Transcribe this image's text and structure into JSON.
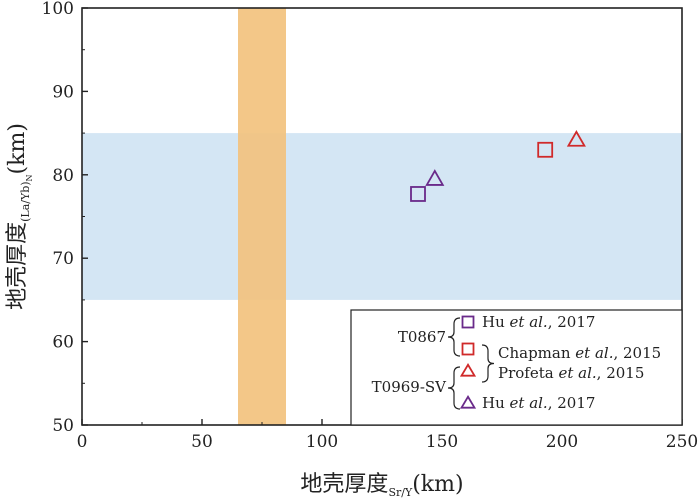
{
  "chart_data": {
    "type": "scatter",
    "xlabel": {
      "main": "地壳厚度",
      "sub": "Sr/Y",
      "unit": "(km)"
    },
    "ylabel": {
      "main": "地壳厚度",
      "sub": "(La/Yb)",
      "sub2": "N",
      "unit": "(km)"
    },
    "xlim": [
      0,
      250
    ],
    "ylim": [
      50,
      100
    ],
    "xticks": [
      0,
      50,
      100,
      150,
      200,
      250
    ],
    "yticks": [
      50,
      60,
      70,
      80,
      90,
      100
    ],
    "grid": false,
    "legend_position": "bottom-right",
    "bands": [
      {
        "orientation": "vertical",
        "from": 65,
        "to": 85,
        "color": "#f2c27e"
      },
      {
        "orientation": "horizontal",
        "from": 65,
        "to": 85,
        "color": "#d4e6f4"
      }
    ],
    "series": [
      {
        "marker": "square",
        "color": "#6a2a8a",
        "points": [
          {
            "x": 140,
            "y": 77.7
          }
        ]
      },
      {
        "marker": "square",
        "color": "#d02a2a",
        "points": [
          {
            "x": 193,
            "y": 83
          }
        ]
      },
      {
        "marker": "triangle",
        "color": "#d02a2a",
        "points": [
          {
            "x": 206,
            "y": 84.2
          }
        ]
      },
      {
        "marker": "triangle",
        "color": "#6a2a8a",
        "points": [
          {
            "x": 147,
            "y": 79.5
          }
        ]
      }
    ],
    "legend": {
      "groups": [
        {
          "label": "T0867"
        },
        {
          "label": "T0969-SV"
        }
      ],
      "entries": [
        {
          "marker": "square",
          "color": "#6a2a8a",
          "author": "Hu ",
          "etal": "et al.",
          "year": ", 2017"
        },
        {
          "marker": "square",
          "color": "#d02a2a",
          "author": "Chapman ",
          "etal": "et al.",
          "year": ", 2015"
        },
        {
          "marker": "triangle",
          "color": "#d02a2a",
          "author": "Profeta ",
          "etal": "et al.",
          "year": ", 2015"
        },
        {
          "marker": "triangle",
          "color": "#6a2a8a",
          "author": "Hu ",
          "etal": "et al.",
          "year": ", 2017"
        }
      ]
    }
  }
}
